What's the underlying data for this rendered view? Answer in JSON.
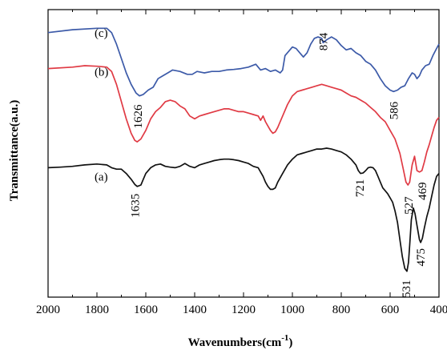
{
  "chart_data": {
    "type": "line",
    "xlabel": "Wavenumbers(cm",
    "xlabel_sup": "-1",
    "xlabel_close": ")",
    "ylabel": "Transmittance(a.u.)",
    "xlim": [
      2000,
      400
    ],
    "x_reversed": true,
    "x_ticks": [
      "2000",
      "1800",
      "1600",
      "1400",
      "1200",
      "1000",
      "800",
      "600",
      "400"
    ],
    "x_tick_values": [
      2000,
      1800,
      1600,
      1400,
      1200,
      1000,
      800,
      600,
      400
    ],
    "y_ticks_shown": false,
    "grid": false,
    "legend": "none",
    "series": [
      {
        "name": "(c)",
        "color": "#3c5aa8",
        "points": [
          [
            2000,
            92
          ],
          [
            1900,
            93
          ],
          [
            1800,
            93.5
          ],
          [
            1760,
            93.5
          ],
          [
            1740,
            92
          ],
          [
            1720,
            88
          ],
          [
            1700,
            83
          ],
          [
            1680,
            78
          ],
          [
            1660,
            74
          ],
          [
            1640,
            71
          ],
          [
            1626,
            70
          ],
          [
            1610,
            70.5
          ],
          [
            1590,
            72
          ],
          [
            1570,
            73
          ],
          [
            1550,
            76
          ],
          [
            1530,
            77
          ],
          [
            1510,
            78
          ],
          [
            1490,
            79
          ],
          [
            1460,
            78.5
          ],
          [
            1430,
            77.5
          ],
          [
            1410,
            77.5
          ],
          [
            1390,
            78.5
          ],
          [
            1360,
            78
          ],
          [
            1330,
            78.5
          ],
          [
            1300,
            78.5
          ],
          [
            1270,
            79
          ],
          [
            1240,
            79.2
          ],
          [
            1210,
            79.5
          ],
          [
            1180,
            80
          ],
          [
            1150,
            81
          ],
          [
            1130,
            79
          ],
          [
            1110,
            79.5
          ],
          [
            1090,
            78.5
          ],
          [
            1070,
            79
          ],
          [
            1050,
            78
          ],
          [
            1040,
            79
          ],
          [
            1030,
            84
          ],
          [
            1015,
            85.5
          ],
          [
            1000,
            87
          ],
          [
            985,
            86.5
          ],
          [
            970,
            85
          ],
          [
            955,
            83.5
          ],
          [
            940,
            85
          ],
          [
            925,
            88
          ],
          [
            910,
            90
          ],
          [
            895,
            90.5
          ],
          [
            880,
            90
          ],
          [
            874,
            88.5
          ],
          [
            860,
            89.5
          ],
          [
            840,
            90.5
          ],
          [
            820,
            89.5
          ],
          [
            800,
            87.5
          ],
          [
            780,
            86
          ],
          [
            760,
            86.5
          ],
          [
            740,
            85
          ],
          [
            720,
            84
          ],
          [
            700,
            82
          ],
          [
            680,
            81
          ],
          [
            660,
            79
          ],
          [
            640,
            76
          ],
          [
            620,
            73.5
          ],
          [
            600,
            72
          ],
          [
            586,
            71.5
          ],
          [
            570,
            72
          ],
          [
            555,
            73
          ],
          [
            540,
            73.5
          ],
          [
            525,
            76
          ],
          [
            510,
            78
          ],
          [
            500,
            77.5
          ],
          [
            490,
            76
          ],
          [
            480,
            77
          ],
          [
            470,
            79
          ],
          [
            455,
            80.5
          ],
          [
            440,
            81
          ],
          [
            425,
            84
          ],
          [
            410,
            86.5
          ],
          [
            400,
            88
          ]
        ],
        "labels": [
          {
            "text": "(c)",
            "x": 1810,
            "y": 90.5
          },
          {
            "text": "1626",
            "x": 1632,
            "y": 67,
            "rotate": true
          },
          {
            "text": "874",
            "x": 874,
            "y": 92,
            "rotate": true
          },
          {
            "text": "586",
            "x": 586,
            "y": 68,
            "rotate": true
          }
        ]
      },
      {
        "name": "(b)",
        "color": "#e03a44",
        "points": [
          [
            2000,
            79.5
          ],
          [
            1900,
            80
          ],
          [
            1850,
            80.5
          ],
          [
            1800,
            80.3
          ],
          [
            1760,
            80
          ],
          [
            1740,
            78.5
          ],
          [
            1720,
            74
          ],
          [
            1700,
            68
          ],
          [
            1680,
            62
          ],
          [
            1660,
            57
          ],
          [
            1645,
            54.5
          ],
          [
            1635,
            54
          ],
          [
            1620,
            55
          ],
          [
            1600,
            58
          ],
          [
            1580,
            62
          ],
          [
            1560,
            64.5
          ],
          [
            1540,
            66
          ],
          [
            1520,
            68
          ],
          [
            1500,
            68.5
          ],
          [
            1480,
            68
          ],
          [
            1460,
            66.5
          ],
          [
            1440,
            65.5
          ],
          [
            1420,
            63
          ],
          [
            1400,
            62
          ],
          [
            1380,
            63
          ],
          [
            1360,
            63.5
          ],
          [
            1340,
            64
          ],
          [
            1320,
            64.5
          ],
          [
            1300,
            65
          ],
          [
            1280,
            65.5
          ],
          [
            1260,
            65.5
          ],
          [
            1240,
            65
          ],
          [
            1220,
            64.5
          ],
          [
            1200,
            64.5
          ],
          [
            1180,
            64
          ],
          [
            1160,
            63.5
          ],
          [
            1140,
            63
          ],
          [
            1130,
            61.5
          ],
          [
            1120,
            63
          ],
          [
            1110,
            61
          ],
          [
            1100,
            59.5
          ],
          [
            1090,
            58
          ],
          [
            1080,
            57
          ],
          [
            1070,
            57.5
          ],
          [
            1060,
            59
          ],
          [
            1040,
            63
          ],
          [
            1020,
            67
          ],
          [
            1000,
            70
          ],
          [
            980,
            71.5
          ],
          [
            960,
            72
          ],
          [
            940,
            72.5
          ],
          [
            920,
            73
          ],
          [
            900,
            73.5
          ],
          [
            880,
            74
          ],
          [
            860,
            73.5
          ],
          [
            840,
            73
          ],
          [
            820,
            72.5
          ],
          [
            800,
            72
          ],
          [
            780,
            71
          ],
          [
            760,
            70
          ],
          [
            740,
            69.5
          ],
          [
            720,
            68.5
          ],
          [
            700,
            67.5
          ],
          [
            680,
            66
          ],
          [
            660,
            64.5
          ],
          [
            640,
            62.5
          ],
          [
            620,
            61
          ],
          [
            600,
            58
          ],
          [
            580,
            55
          ],
          [
            560,
            50
          ],
          [
            545,
            44
          ],
          [
            535,
            40
          ],
          [
            527,
            39
          ],
          [
            520,
            40
          ],
          [
            510,
            46
          ],
          [
            500,
            49
          ],
          [
            490,
            44
          ],
          [
            480,
            43.5
          ],
          [
            470,
            44
          ],
          [
            460,
            47
          ],
          [
            450,
            50.5
          ],
          [
            440,
            53
          ],
          [
            430,
            56
          ],
          [
            420,
            59
          ],
          [
            410,
            61.5
          ],
          [
            400,
            62.5
          ]
        ],
        "labels": [
          {
            "text": "(b)",
            "x": 1810,
            "y": 77
          },
          {
            "text": "527",
            "x": 524,
            "y": 35,
            "rotate": true
          },
          {
            "text": "469",
            "x": 469,
            "y": 40,
            "rotate": true
          }
        ]
      },
      {
        "name": "(a)",
        "color": "#111111",
        "points": [
          [
            2000,
            45
          ],
          [
            1950,
            45.2
          ],
          [
            1900,
            45.5
          ],
          [
            1850,
            46
          ],
          [
            1800,
            46.3
          ],
          [
            1760,
            46
          ],
          [
            1740,
            45
          ],
          [
            1720,
            44.5
          ],
          [
            1700,
            44.5
          ],
          [
            1680,
            43
          ],
          [
            1660,
            41
          ],
          [
            1645,
            39.2
          ],
          [
            1635,
            38.5
          ],
          [
            1620,
            39
          ],
          [
            1610,
            41
          ],
          [
            1600,
            43
          ],
          [
            1580,
            45
          ],
          [
            1560,
            46
          ],
          [
            1540,
            46.3
          ],
          [
            1520,
            45.5
          ],
          [
            1500,
            45.2
          ],
          [
            1480,
            45
          ],
          [
            1460,
            45.5
          ],
          [
            1440,
            46.5
          ],
          [
            1420,
            45.5
          ],
          [
            1400,
            45
          ],
          [
            1380,
            46
          ],
          [
            1360,
            46.5
          ],
          [
            1340,
            47
          ],
          [
            1320,
            47.5
          ],
          [
            1300,
            47.8
          ],
          [
            1280,
            48
          ],
          [
            1260,
            48
          ],
          [
            1240,
            47.8
          ],
          [
            1220,
            47.5
          ],
          [
            1200,
            47
          ],
          [
            1180,
            46.5
          ],
          [
            1160,
            45.5
          ],
          [
            1140,
            45
          ],
          [
            1130,
            43.5
          ],
          [
            1120,
            42
          ],
          [
            1110,
            40
          ],
          [
            1100,
            38.5
          ],
          [
            1090,
            37.5
          ],
          [
            1080,
            37.5
          ],
          [
            1070,
            38
          ],
          [
            1060,
            40
          ],
          [
            1040,
            43
          ],
          [
            1020,
            46
          ],
          [
            1000,
            48
          ],
          [
            980,
            49.5
          ],
          [
            960,
            50
          ],
          [
            940,
            50.5
          ],
          [
            920,
            51
          ],
          [
            900,
            51.5
          ],
          [
            880,
            51.5
          ],
          [
            860,
            51.8
          ],
          [
            840,
            51.5
          ],
          [
            820,
            51
          ],
          [
            800,
            50.5
          ],
          [
            780,
            49.5
          ],
          [
            760,
            48
          ],
          [
            740,
            46
          ],
          [
            730,
            44
          ],
          [
            721,
            43
          ],
          [
            710,
            43.2
          ],
          [
            700,
            44
          ],
          [
            690,
            45
          ],
          [
            680,
            45.2
          ],
          [
            670,
            45
          ],
          [
            660,
            44
          ],
          [
            650,
            42
          ],
          [
            640,
            40
          ],
          [
            630,
            38
          ],
          [
            620,
            37
          ],
          [
            610,
            36
          ],
          [
            600,
            34.5
          ],
          [
            590,
            33
          ],
          [
            580,
            30
          ],
          [
            570,
            26
          ],
          [
            560,
            20
          ],
          [
            550,
            14
          ],
          [
            540,
            10
          ],
          [
            531,
            9
          ],
          [
            525,
            12
          ],
          [
            520,
            18
          ],
          [
            513,
            27
          ],
          [
            505,
            31
          ],
          [
            498,
            29
          ],
          [
            490,
            25
          ],
          [
            480,
            20
          ],
          [
            475,
            19
          ],
          [
            468,
            20.5
          ],
          [
            460,
            24
          ],
          [
            450,
            28
          ],
          [
            440,
            31
          ],
          [
            430,
            35
          ],
          [
            420,
            39
          ],
          [
            410,
            42
          ],
          [
            400,
            43
          ]
        ],
        "labels": [
          {
            "text": "(a)",
            "x": 1810,
            "y": 40.5
          },
          {
            "text": "1635",
            "x": 1645,
            "y": 36,
            "rotate": true
          },
          {
            "text": "721",
            "x": 725,
            "y": 41,
            "rotate": true
          },
          {
            "text": "531",
            "x": 535,
            "y": 6,
            "rotate": true
          },
          {
            "text": "475",
            "x": 475,
            "y": 17,
            "rotate": true
          }
        ]
      }
    ]
  }
}
